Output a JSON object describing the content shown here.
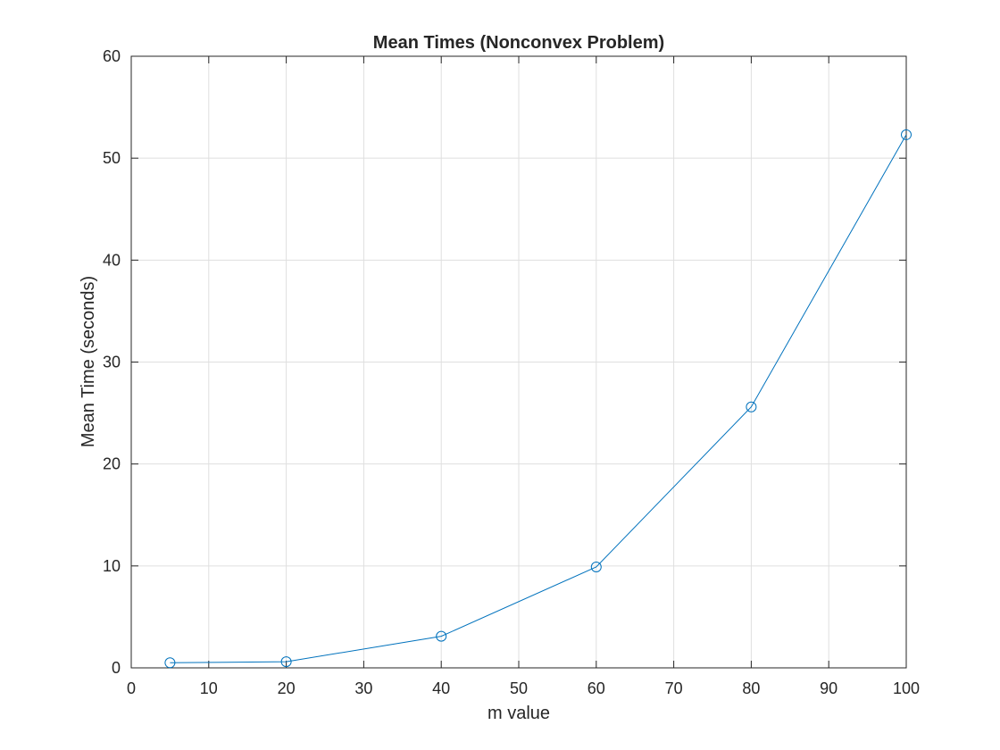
{
  "chart_data": {
    "type": "line",
    "title": "Mean Times (Nonconvex Problem)",
    "xlabel": "m value",
    "ylabel": "Mean Time (seconds)",
    "xlim": [
      0,
      100
    ],
    "ylim": [
      0,
      60
    ],
    "xticks": [
      0,
      10,
      20,
      30,
      40,
      50,
      60,
      70,
      80,
      90,
      100
    ],
    "yticks": [
      0,
      10,
      20,
      30,
      40,
      50,
      60
    ],
    "grid": true,
    "marker": "circle",
    "series": [
      {
        "color": "#0072BD",
        "points": [
          {
            "x": 5,
            "y": 0.5
          },
          {
            "x": 20,
            "y": 0.6
          },
          {
            "x": 40,
            "y": 3.1
          },
          {
            "x": 60,
            "y": 9.9
          },
          {
            "x": 80,
            "y": 25.6
          },
          {
            "x": 100,
            "y": 52.3
          }
        ]
      }
    ]
  }
}
